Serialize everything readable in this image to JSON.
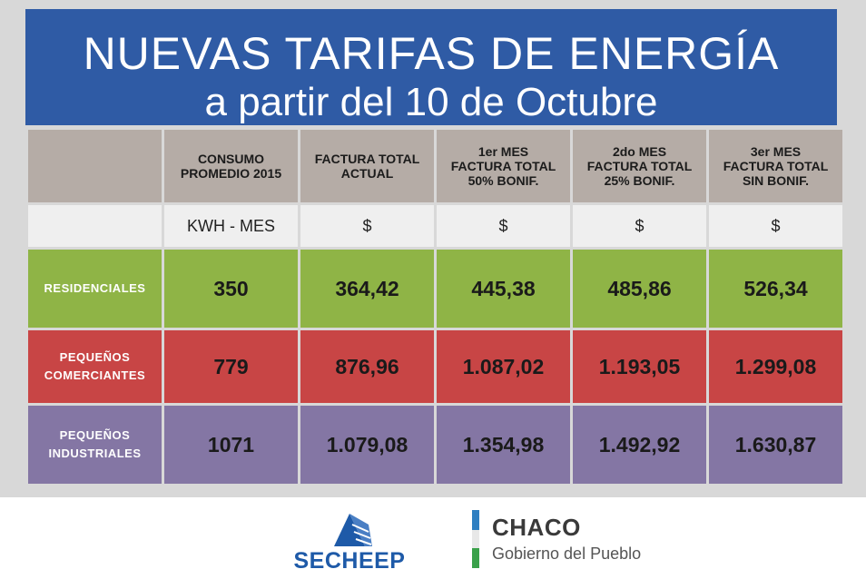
{
  "title": {
    "line1": "NUEVAS TARIFAS DE ENERGÍA",
    "line2": "a partir del 10 de Octubre"
  },
  "table": {
    "headers": [
      "",
      "CONSUMO\nPROMEDIO 2015",
      "FACTURA TOTAL\nACTUAL",
      "1er MES\nFACTURA TOTAL\n50% BONIF.",
      "2do MES\nFACTURA TOTAL\n25% BONIF.",
      "3er MES\nFACTURA TOTAL\nSIN BONIF."
    ],
    "units": [
      "",
      "KWH - MES",
      "$",
      "$",
      "$",
      "$"
    ],
    "rows": [
      {
        "label": "RESIDENCIALES",
        "values": [
          "350",
          "364,42",
          "445,38",
          "485,86",
          "526,34"
        ],
        "color": "#8fb446"
      },
      {
        "label": "PEQUEÑOS\nCOMERCIANTES",
        "values": [
          "779",
          "876,96",
          "1.087,02",
          "1.193,05",
          "1.299,08"
        ],
        "color": "#c84545"
      },
      {
        "label": "PEQUEÑOS\nINDUSTRIALES",
        "values": [
          "1071",
          "1.079,08",
          "1.354,98",
          "1.492,92",
          "1.630,87"
        ],
        "color": "#8476a4"
      }
    ]
  },
  "footer": {
    "secheep": "SECHEEP",
    "chaco_name": "CHACO",
    "chaco_subtitle": "Gobierno del Pueblo"
  },
  "colors": {
    "title_bg": "#2f5ba5",
    "header_bg": "#b5aca6",
    "secheep_blue": "#1e5aa8"
  }
}
